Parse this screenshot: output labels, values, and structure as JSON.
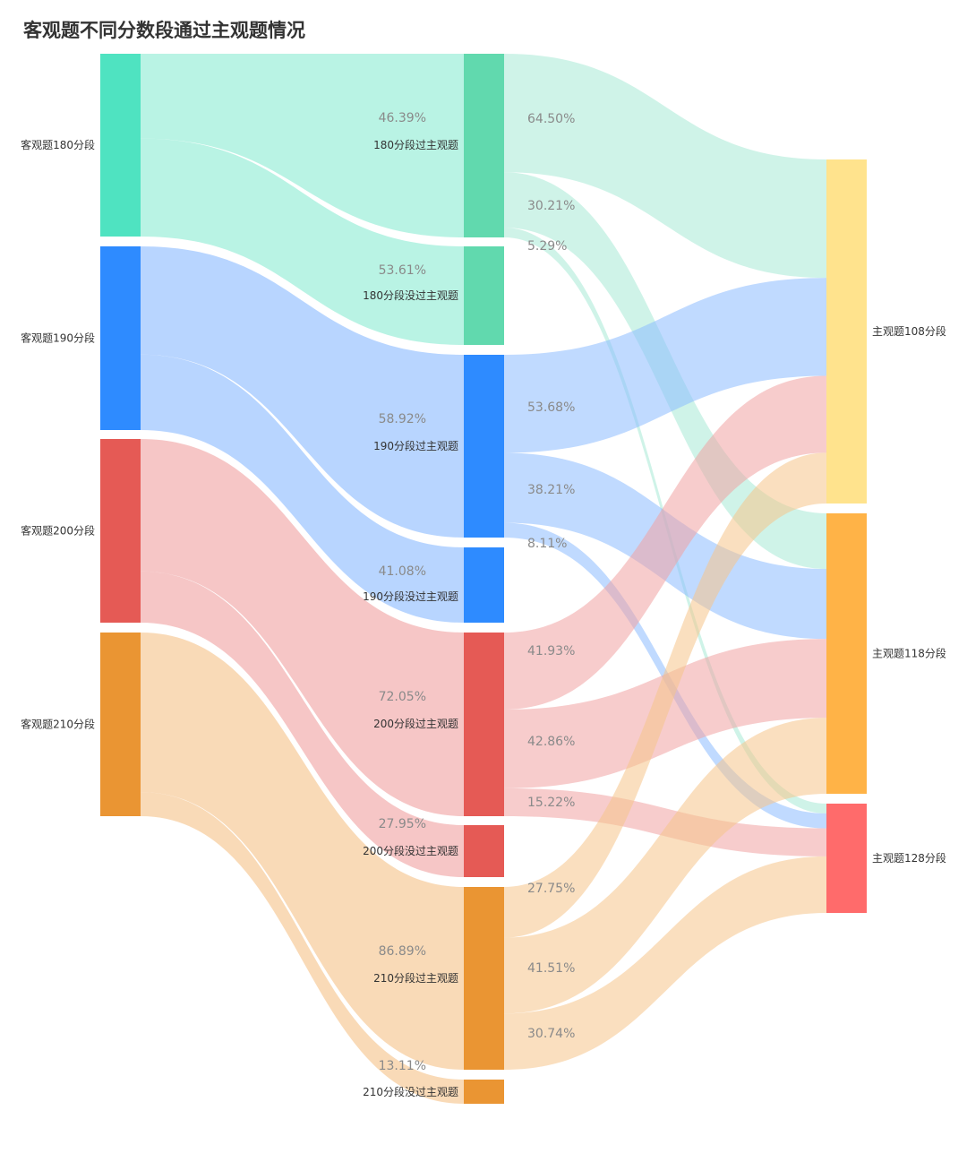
{
  "chart_data": {
    "type": "sankey",
    "title": "客观题不同分数段通过主观题情况",
    "nodes": [
      {
        "id": "o180",
        "name": "客观题180分段",
        "column": 0,
        "color": "#4fe3c1"
      },
      {
        "id": "o190",
        "name": "客观题190分段",
        "column": 0,
        "color": "#2e8bff"
      },
      {
        "id": "o200",
        "name": "客观题200分段",
        "column": 0,
        "color": "#e55a55"
      },
      {
        "id": "o210",
        "name": "客观题210分段",
        "column": 0,
        "color": "#ea9533"
      },
      {
        "id": "p180",
        "name": "180分段过主观题",
        "column": 1,
        "color": "#61d9ae"
      },
      {
        "id": "f180",
        "name": "180分段没过主观题",
        "column": 1,
        "color": "#61d9ae"
      },
      {
        "id": "p190",
        "name": "190分段过主观题",
        "column": 1,
        "color": "#2e8bff"
      },
      {
        "id": "f190",
        "name": "190分段没过主观题",
        "column": 1,
        "color": "#2e8bff"
      },
      {
        "id": "p200",
        "name": "200分段过主观题",
        "column": 1,
        "color": "#e55a55"
      },
      {
        "id": "f200",
        "name": "200分段没过主观题",
        "column": 1,
        "color": "#e55a55"
      },
      {
        "id": "p210",
        "name": "210分段过主观题",
        "column": 1,
        "color": "#ea9533"
      },
      {
        "id": "f210",
        "name": "210分段没过主观题",
        "column": 1,
        "color": "#ea9533"
      },
      {
        "id": "s108",
        "name": "主观题108分段",
        "column": 2,
        "color": "#ffe38d"
      },
      {
        "id": "s118",
        "name": "主观题118分段",
        "column": 2,
        "color": "#ffb347"
      },
      {
        "id": "s128",
        "name": "主观题128分段",
        "column": 2,
        "color": "#ff6b6b"
      }
    ],
    "links": [
      {
        "source": "o180",
        "target": "p180",
        "value": 46.39,
        "label": "46.39%"
      },
      {
        "source": "o180",
        "target": "f180",
        "value": 53.61,
        "label": "53.61%"
      },
      {
        "source": "o190",
        "target": "p190",
        "value": 58.92,
        "label": "58.92%"
      },
      {
        "source": "o190",
        "target": "f190",
        "value": 41.08,
        "label": "41.08%"
      },
      {
        "source": "o200",
        "target": "p200",
        "value": 72.05,
        "label": "72.05%"
      },
      {
        "source": "o200",
        "target": "f200",
        "value": 27.95,
        "label": "27.95%"
      },
      {
        "source": "o210",
        "target": "p210",
        "value": 86.89,
        "label": "86.89%"
      },
      {
        "source": "o210",
        "target": "f210",
        "value": 13.11,
        "label": "13.11%"
      },
      {
        "source": "p180",
        "target": "s108",
        "value": 64.5,
        "label": "64.50%"
      },
      {
        "source": "p180",
        "target": "s118",
        "value": 30.21,
        "label": "30.21%"
      },
      {
        "source": "p180",
        "target": "s128",
        "value": 5.29,
        "label": "5.29%"
      },
      {
        "source": "p190",
        "target": "s108",
        "value": 53.68,
        "label": "53.68%"
      },
      {
        "source": "p190",
        "target": "s118",
        "value": 38.21,
        "label": "38.21%"
      },
      {
        "source": "p190",
        "target": "s128",
        "value": 8.11,
        "label": "8.11%"
      },
      {
        "source": "p200",
        "target": "s108",
        "value": 41.93,
        "label": "41.93%"
      },
      {
        "source": "p200",
        "target": "s118",
        "value": 42.86,
        "label": "42.86%"
      },
      {
        "source": "p200",
        "target": "s128",
        "value": 15.22,
        "label": "15.22%"
      },
      {
        "source": "p210",
        "target": "s108",
        "value": 27.75,
        "label": "27.75%"
      },
      {
        "source": "p210",
        "target": "s118",
        "value": 41.51,
        "label": "41.51%"
      },
      {
        "source": "p210",
        "target": "s128",
        "value": 30.74,
        "label": "30.74%"
      }
    ]
  }
}
